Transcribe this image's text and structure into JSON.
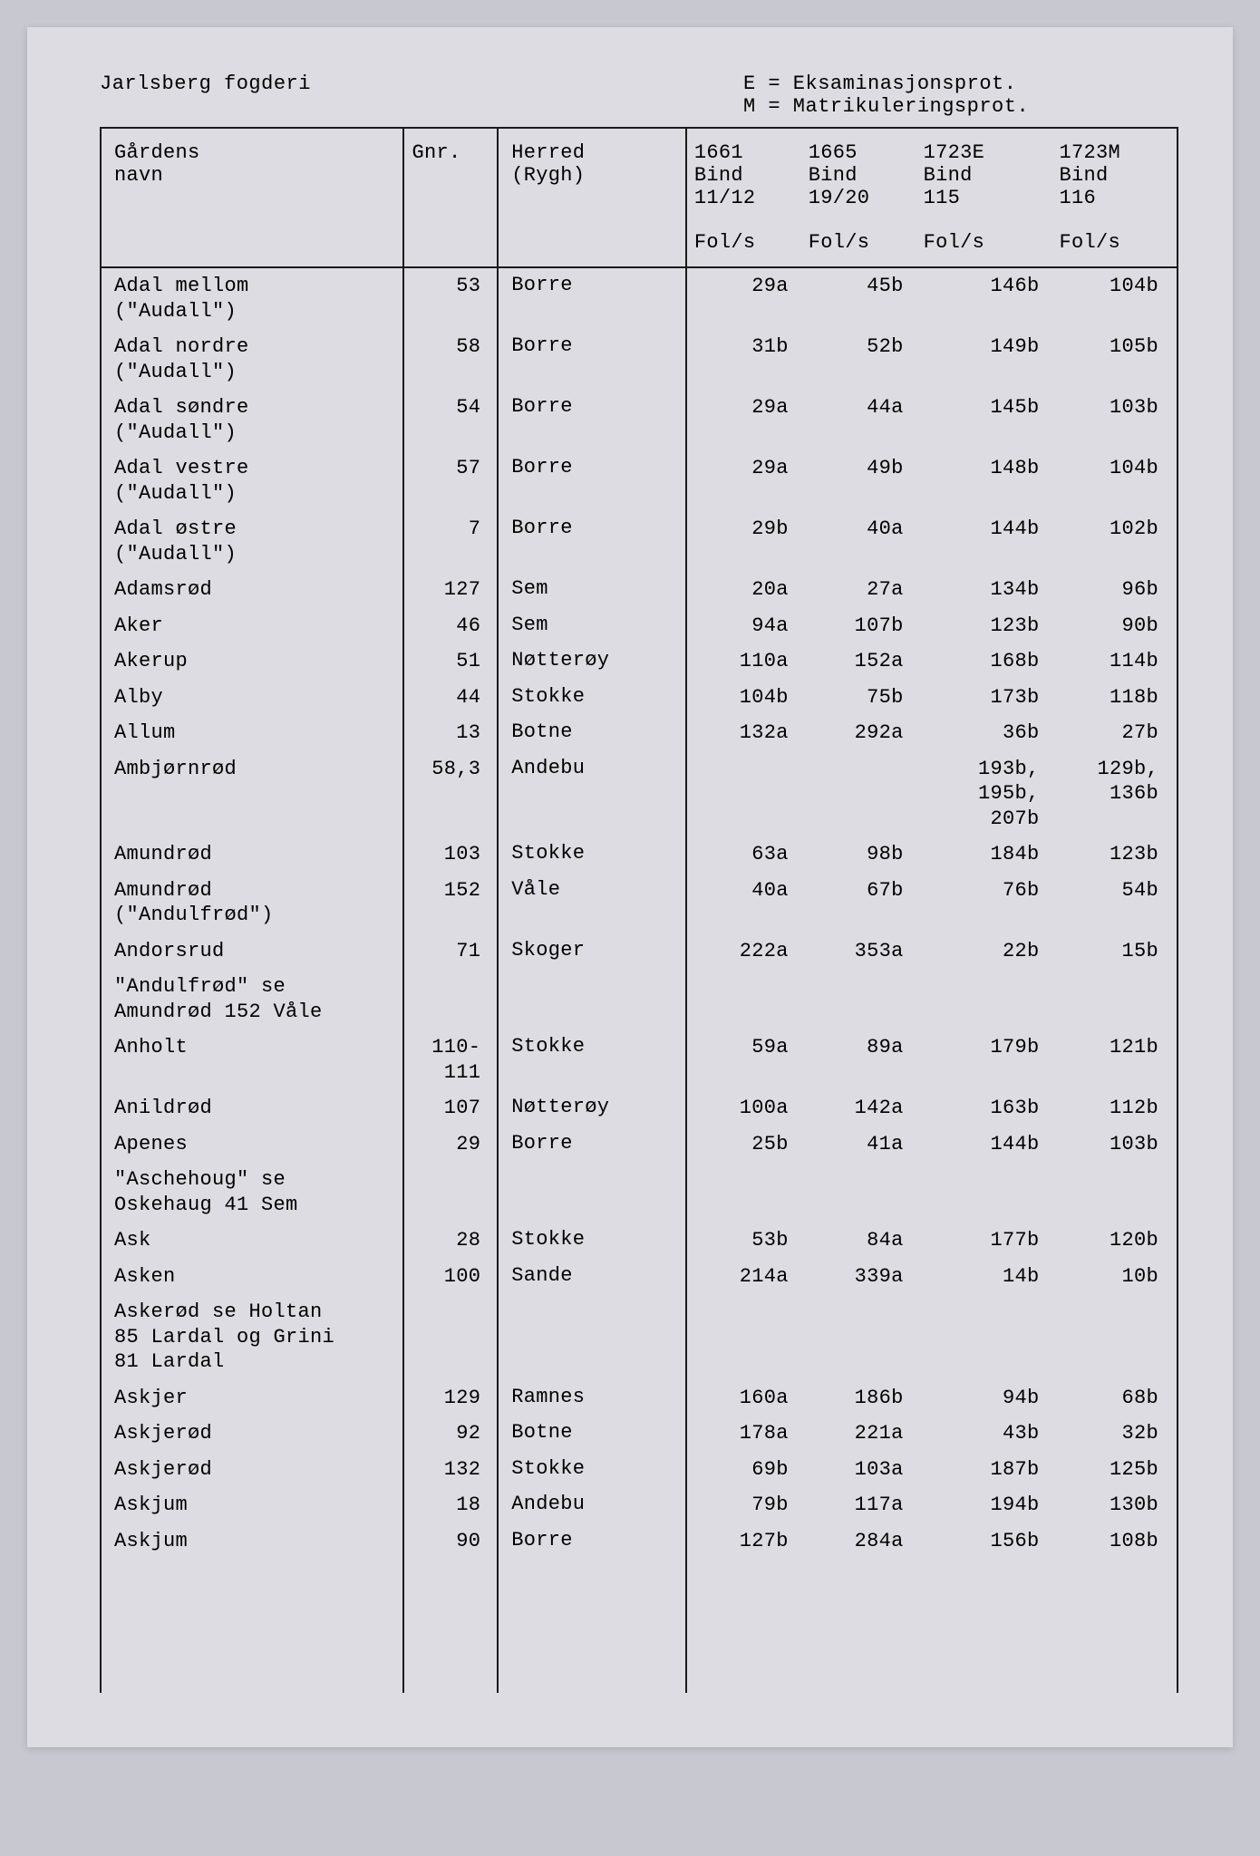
{
  "header": {
    "title": "Jarlsberg fogderi",
    "legend_e": "E = Eksaminasjonsprot.",
    "legend_m": "M = Matrikuleringsprot."
  },
  "columns": {
    "name_l1": "Gårdens",
    "name_l2": "navn",
    "gnr": "Gnr.",
    "herred_l1": "Herred",
    "herred_l2": "(Rygh)",
    "c1_l1": "1661",
    "c1_l2": "Bind",
    "c1_l3": "11/12",
    "c2_l1": "1665",
    "c2_l2": "Bind",
    "c2_l3": "19/20",
    "c3_l1": "1723E",
    "c3_l2": "Bind",
    "c3_l3": "115",
    "c4_l1": "1723M",
    "c4_l2": "Bind",
    "c4_l3": "116",
    "fols": "Fol/s"
  },
  "rows": [
    {
      "name": "Adal mellom\n(\"Audall\")",
      "gnr": "53",
      "herred": "Borre",
      "c1": "29a",
      "c2": "45b",
      "c3": "146b",
      "c4": "104b"
    },
    {
      "name": "Adal nordre\n(\"Audall\")",
      "gnr": "58",
      "herred": "Borre",
      "c1": "31b",
      "c2": "52b",
      "c3": "149b",
      "c4": "105b"
    },
    {
      "name": "Adal søndre\n(\"Audall\")",
      "gnr": "54",
      "herred": "Borre",
      "c1": "29a",
      "c2": "44a",
      "c3": "145b",
      "c4": "103b"
    },
    {
      "name": "Adal vestre\n(\"Audall\")",
      "gnr": "57",
      "herred": "Borre",
      "c1": "29a",
      "c2": "49b",
      "c3": "148b",
      "c4": "104b"
    },
    {
      "name": "Adal østre\n(\"Audall\")",
      "gnr": "7",
      "herred": "Borre",
      "c1": "29b",
      "c2": "40a",
      "c3": "144b",
      "c4": "102b"
    },
    {
      "name": "Adamsrød",
      "gnr": "127",
      "herred": "Sem",
      "c1": "20a",
      "c2": "27a",
      "c3": "134b",
      "c4": "96b"
    },
    {
      "name": "Aker",
      "gnr": "46",
      "herred": "Sem",
      "c1": "94a",
      "c2": "107b",
      "c3": "123b",
      "c4": "90b"
    },
    {
      "name": "Akerup",
      "gnr": "51",
      "herred": "Nøtterøy",
      "c1": "110a",
      "c2": "152a",
      "c3": "168b",
      "c4": "114b"
    },
    {
      "name": "Alby",
      "gnr": "44",
      "herred": "Stokke",
      "c1": "104b",
      "c2": "75b",
      "c3": "173b",
      "c4": "118b"
    },
    {
      "name": "Allum",
      "gnr": "13",
      "herred": "Botne",
      "c1": "132a",
      "c2": "292a",
      "c3": "36b",
      "c4": "27b"
    },
    {
      "name": "Ambjørnrød",
      "gnr": "58,3",
      "herred": "Andebu",
      "c1": "",
      "c2": "",
      "c3": "193b,\n195b,\n207b",
      "c4": "129b,\n136b"
    },
    {
      "name": "Amundrød",
      "gnr": "103",
      "herred": "Stokke",
      "c1": "63a",
      "c2": "98b",
      "c3": "184b",
      "c4": "123b"
    },
    {
      "name": "Amundrød\n(\"Andulfrød\")",
      "gnr": "152",
      "herred": "Våle",
      "c1": "40a",
      "c2": "67b",
      "c3": "76b",
      "c4": "54b"
    },
    {
      "name": "Andorsrud",
      "gnr": "71",
      "herred": "Skoger",
      "c1": "222a",
      "c2": "353a",
      "c3": "22b",
      "c4": "15b"
    },
    {
      "name": "\"Andulfrød\" se\nAmundrød 152 Våle",
      "gnr": "",
      "herred": "",
      "c1": "",
      "c2": "",
      "c3": "",
      "c4": ""
    },
    {
      "name": "Anholt",
      "gnr": "110-\n111",
      "herred": "Stokke",
      "c1": "59a",
      "c2": "89a",
      "c3": "179b",
      "c4": "121b"
    },
    {
      "name": "Anildrød",
      "gnr": "107",
      "herred": "Nøtterøy",
      "c1": "100a",
      "c2": "142a",
      "c3": "163b",
      "c4": "112b"
    },
    {
      "name": "Apenes",
      "gnr": "29",
      "herred": "Borre",
      "c1": "25b",
      "c2": "41a",
      "c3": "144b",
      "c4": "103b"
    },
    {
      "name": "\"Aschehoug\" se\nOskehaug 41 Sem",
      "gnr": "",
      "herred": "",
      "c1": "",
      "c2": "",
      "c3": "",
      "c4": ""
    },
    {
      "name": "Ask",
      "gnr": "28",
      "herred": "Stokke",
      "c1": "53b",
      "c2": "84a",
      "c3": "177b",
      "c4": "120b"
    },
    {
      "name": "Asken",
      "gnr": "100",
      "herred": "Sande",
      "c1": "214a",
      "c2": "339a",
      "c3": "14b",
      "c4": "10b"
    },
    {
      "name": "Askerød se Holtan\n85 Lardal og Grini\n81 Lardal",
      "gnr": "",
      "herred": "",
      "c1": "",
      "c2": "",
      "c3": "",
      "c4": ""
    },
    {
      "name": "Askjer",
      "gnr": "129",
      "herred": "Ramnes",
      "c1": "160a",
      "c2": "186b",
      "c3": "94b",
      "c4": "68b"
    },
    {
      "name": "Askjerød",
      "gnr": "92",
      "herred": "Botne",
      "c1": "178a",
      "c2": "221a",
      "c3": "43b",
      "c4": "32b"
    },
    {
      "name": "Askjerød",
      "gnr": "132",
      "herred": "Stokke",
      "c1": "69b",
      "c2": "103a",
      "c3": "187b",
      "c4": "125b"
    },
    {
      "name": "Askjum",
      "gnr": "18",
      "herred": "Andebu",
      "c1": "79b",
      "c2": "117a",
      "c3": "194b",
      "c4": "130b"
    },
    {
      "name": "Askjum",
      "gnr": "90",
      "herred": "Borre",
      "c1": "127b",
      "c2": "284a",
      "c3": "156b",
      "c4": "108b"
    }
  ],
  "style": {
    "background_color": "#dcdce2",
    "border_color": "#1a1a1a",
    "text_color": "#1a1a1a",
    "font_family": "Courier New",
    "font_size_pt": 16
  }
}
